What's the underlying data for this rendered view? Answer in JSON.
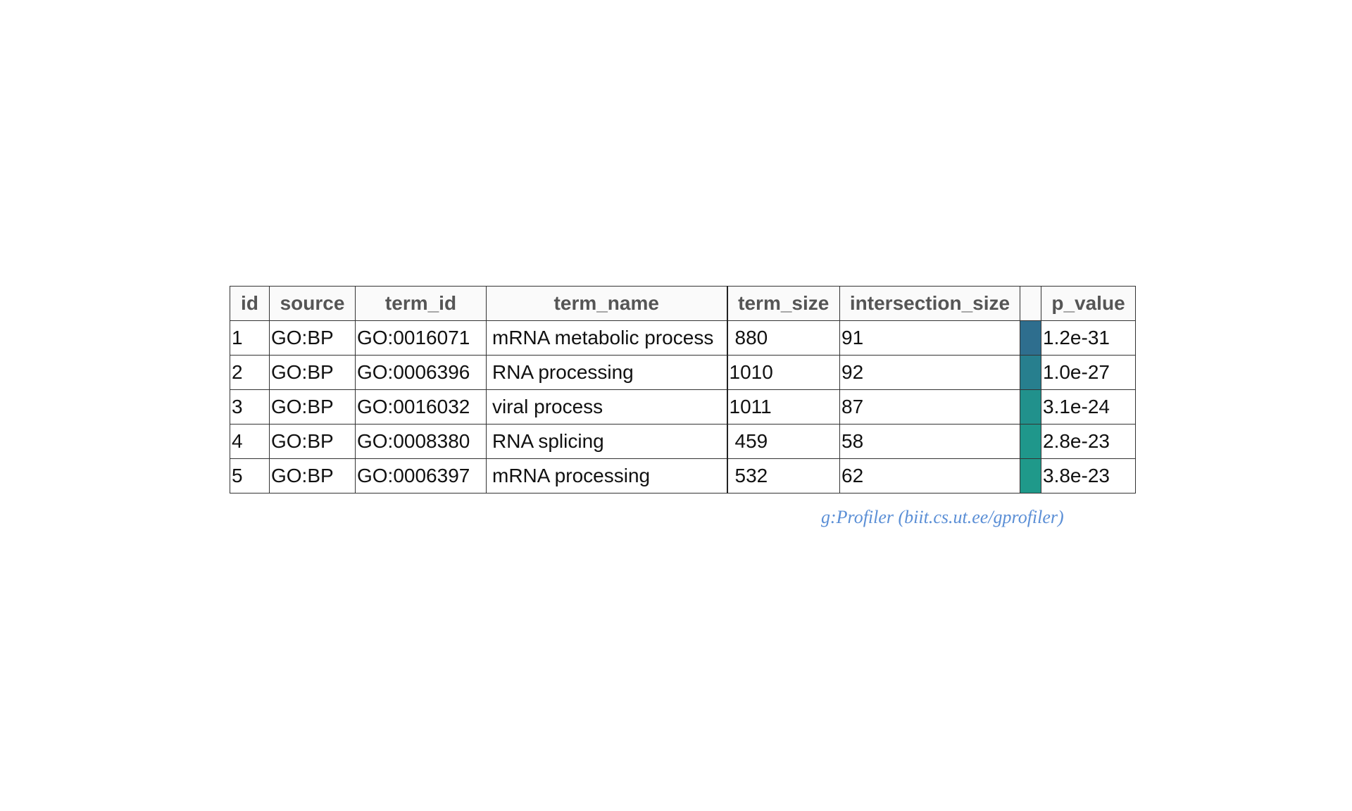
{
  "chart_data": {
    "type": "table",
    "columns": [
      "id",
      "source",
      "term_id",
      "term_name",
      "term_size",
      "intersection_size",
      "",
      "p_value"
    ],
    "rows": [
      {
        "id": "1",
        "source": "GO:BP",
        "term_id": "GO:0016071",
        "term_name": "mRNA metabolic process",
        "term_size": "880",
        "intersection_size": "91",
        "color": "#2e6e8e",
        "p_value": "1.2e-31"
      },
      {
        "id": "2",
        "source": "GO:BP",
        "term_id": "GO:0006396",
        "term_name": "RNA processing",
        "term_size": "1010",
        "intersection_size": "92",
        "color": "#277f8e",
        "p_value": "1.0e-27"
      },
      {
        "id": "3",
        "source": "GO:BP",
        "term_id": "GO:0016032",
        "term_name": "viral process",
        "term_size": "1011",
        "intersection_size": "87",
        "color": "#21918c",
        "p_value": "3.1e-24"
      },
      {
        "id": "4",
        "source": "GO:BP",
        "term_id": "GO:0008380",
        "term_name": "RNA splicing",
        "term_size": "459",
        "intersection_size": "58",
        "color": "#1f978b",
        "p_value": "2.8e-23"
      },
      {
        "id": "5",
        "source": "GO:BP",
        "term_id": "GO:0006397",
        "term_name": "mRNA processing",
        "term_size": "532",
        "intersection_size": "62",
        "color": "#1f998a",
        "p_value": "3.8e-23"
      }
    ]
  },
  "credit": "g:Profiler (biit.cs.ut.ee/gprofiler)"
}
